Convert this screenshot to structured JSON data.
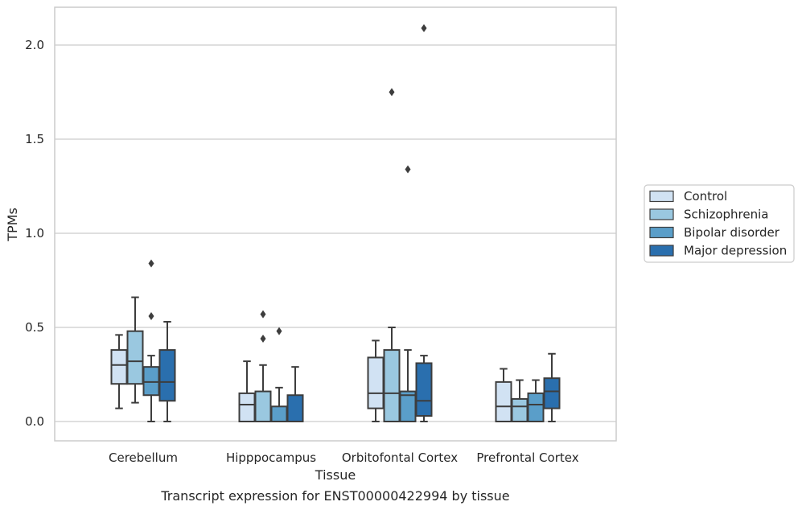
{
  "chart_data": {
    "type": "box",
    "title": "",
    "caption": "Transcript expression for ENST00000422994 by tissue",
    "xlabel": "Tissue",
    "ylabel": "TPMs",
    "ylim": [
      -0.1,
      2.2
    ],
    "yticks": [
      0.0,
      0.5,
      1.0,
      1.5,
      2.0
    ],
    "ytick_labels": [
      "0.0",
      "0.5",
      "1.0",
      "1.5",
      "2.0"
    ],
    "grid": "horizontal",
    "legend_position": "right",
    "categories": [
      "Cerebellum",
      "Hipppocampus",
      "Orbitofontal Cortex",
      "Prefrontal Cortex"
    ],
    "series": [
      {
        "name": "Control",
        "color": "#d1e2f3",
        "boxes": [
          {
            "whisker_low": 0.07,
            "q1": 0.2,
            "median": 0.3,
            "q3": 0.38,
            "whisker_high": 0.46,
            "outliers": []
          },
          {
            "whisker_low": 0.0,
            "q1": 0.0,
            "median": 0.09,
            "q3": 0.15,
            "whisker_high": 0.32,
            "outliers": []
          },
          {
            "whisker_low": 0.0,
            "q1": 0.07,
            "median": 0.15,
            "q3": 0.34,
            "whisker_high": 0.43,
            "outliers": []
          },
          {
            "whisker_low": 0.0,
            "q1": 0.0,
            "median": 0.08,
            "q3": 0.21,
            "whisker_high": 0.28,
            "outliers": []
          }
        ]
      },
      {
        "name": "Schizophrenia",
        "color": "#9ac8e0",
        "boxes": [
          {
            "whisker_low": 0.1,
            "q1": 0.2,
            "median": 0.32,
            "q3": 0.48,
            "whisker_high": 0.66,
            "outliers": []
          },
          {
            "whisker_low": 0.0,
            "q1": 0.0,
            "median": 0.0,
            "q3": 0.16,
            "whisker_high": 0.3,
            "outliers": [
              0.44,
              0.57
            ]
          },
          {
            "whisker_low": 0.0,
            "q1": 0.0,
            "median": 0.15,
            "q3": 0.38,
            "whisker_high": 0.5,
            "outliers": [
              1.75
            ]
          },
          {
            "whisker_low": 0.0,
            "q1": 0.0,
            "median": 0.08,
            "q3": 0.12,
            "whisker_high": 0.22,
            "outliers": []
          }
        ]
      },
      {
        "name": "Bipolar disorder",
        "color": "#5a9ec9",
        "boxes": [
          {
            "whisker_low": 0.0,
            "q1": 0.14,
            "median": 0.21,
            "q3": 0.29,
            "whisker_high": 0.35,
            "outliers": [
              0.56,
              0.84
            ]
          },
          {
            "whisker_low": 0.0,
            "q1": 0.0,
            "median": 0.0,
            "q3": 0.08,
            "whisker_high": 0.18,
            "outliers": [
              0.48
            ]
          },
          {
            "whisker_low": 0.0,
            "q1": 0.0,
            "median": 0.14,
            "q3": 0.16,
            "whisker_high": 0.38,
            "outliers": [
              1.34
            ]
          },
          {
            "whisker_low": 0.0,
            "q1": 0.0,
            "median": 0.09,
            "q3": 0.15,
            "whisker_high": 0.22,
            "outliers": []
          }
        ]
      },
      {
        "name": "Major depression",
        "color": "#2a6fae",
        "boxes": [
          {
            "whisker_low": 0.0,
            "q1": 0.11,
            "median": 0.21,
            "q3": 0.38,
            "whisker_high": 0.53,
            "outliers": []
          },
          {
            "whisker_low": 0.0,
            "q1": 0.0,
            "median": 0.0,
            "q3": 0.14,
            "whisker_high": 0.29,
            "outliers": []
          },
          {
            "whisker_low": 0.0,
            "q1": 0.03,
            "median": 0.11,
            "q3": 0.31,
            "whisker_high": 0.35,
            "outliers": [
              2.09
            ]
          },
          {
            "whisker_low": 0.0,
            "q1": 0.07,
            "median": 0.16,
            "q3": 0.23,
            "whisker_high": 0.36,
            "outliers": []
          }
        ]
      }
    ]
  }
}
